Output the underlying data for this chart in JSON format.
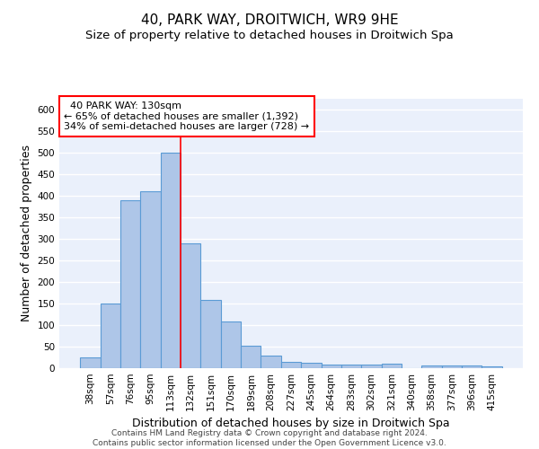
{
  "title": "40, PARK WAY, DROITWICH, WR9 9HE",
  "subtitle": "Size of property relative to detached houses in Droitwich Spa",
  "xlabel": "Distribution of detached houses by size in Droitwich Spa",
  "ylabel": "Number of detached properties",
  "footer_line1": "Contains HM Land Registry data © Crown copyright and database right 2024.",
  "footer_line2": "Contains public sector information licensed under the Open Government Licence v3.0.",
  "categories": [
    "38sqm",
    "57sqm",
    "76sqm",
    "95sqm",
    "113sqm",
    "132sqm",
    "151sqm",
    "170sqm",
    "189sqm",
    "208sqm",
    "227sqm",
    "245sqm",
    "264sqm",
    "283sqm",
    "302sqm",
    "321sqm",
    "340sqm",
    "358sqm",
    "377sqm",
    "396sqm",
    "415sqm"
  ],
  "values": [
    25,
    150,
    390,
    410,
    500,
    290,
    158,
    108,
    53,
    30,
    15,
    12,
    9,
    9,
    9,
    10,
    0,
    6,
    6,
    6,
    5
  ],
  "bar_color": "#aec6e8",
  "bar_edge_color": "#5b9bd5",
  "bar_linewidth": 0.8,
  "property_line_x": 4.5,
  "property_line_color": "red",
  "property_line_linewidth": 1.2,
  "annotation_text": "  40 PARK WAY: 130sqm\n← 65% of detached houses are smaller (1,392)\n34% of semi-detached houses are larger (728) →",
  "annotation_box_color": "white",
  "annotation_box_edge_color": "red",
  "ylim": [
    0,
    625
  ],
  "yticks": [
    0,
    50,
    100,
    150,
    200,
    250,
    300,
    350,
    400,
    450,
    500,
    550,
    600
  ],
  "background_color": "#eaf0fb",
  "grid_color": "white",
  "title_fontsize": 11,
  "subtitle_fontsize": 9.5,
  "xlabel_fontsize": 9,
  "ylabel_fontsize": 9,
  "tick_fontsize": 7.5,
  "annotation_fontsize": 8,
  "footer_fontsize": 6.5
}
